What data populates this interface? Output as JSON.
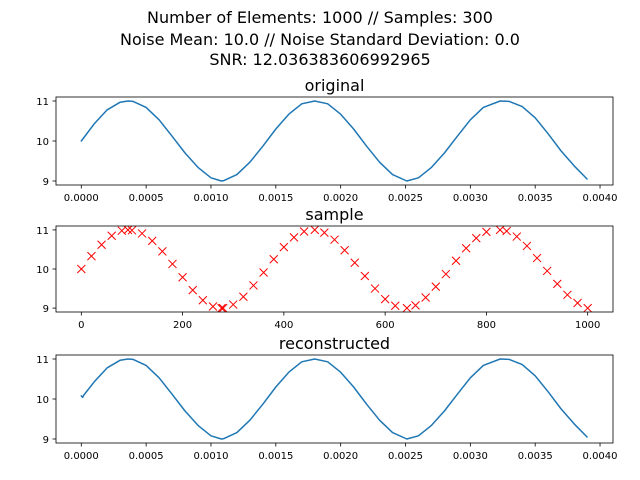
{
  "figure": {
    "title_lines": [
      "Number of Elements: 1000 // Samples: 300",
      "Noise Mean: 10.0 // Noise Standard Deviation: 0.0",
      "SNR: 12.036383606992965"
    ]
  },
  "chart_data": [
    {
      "type": "line",
      "title": "original",
      "xlabel": "",
      "ylabel": "",
      "xlim": [
        -0.000195,
        0.0041
      ],
      "ylim": [
        8.9,
        11.1
      ],
      "xticks": [
        0.0,
        0.0005,
        0.001,
        0.0015,
        0.002,
        0.0025,
        0.003,
        0.0035,
        0.004
      ],
      "xtick_labels": [
        "0.0000",
        "0.0005",
        "0.0010",
        "0.0015",
        "0.0020",
        "0.0025",
        "0.0030",
        "0.0035",
        "0.0040"
      ],
      "yticks": [
        9,
        10,
        11
      ],
      "ytick_labels": [
        "9",
        "10",
        "11"
      ],
      "grid": false,
      "series": [
        {
          "color": "#1f77b4",
          "x": [
            0,
            0.0001,
            0.0002,
            0.0003,
            0.00036,
            0.0004,
            0.0005,
            0.0006,
            0.0007,
            0.0008,
            0.0009,
            0.001,
            0.00108,
            0.0011,
            0.0012,
            0.0013,
            0.0014,
            0.0015,
            0.0016,
            0.0017,
            0.0018,
            0.0019,
            0.002,
            0.0021,
            0.0022,
            0.0023,
            0.0024,
            0.00251,
            0.0026,
            0.0027,
            0.0028,
            0.0029,
            0.003,
            0.0031,
            0.00323,
            0.0033,
            0.0034,
            0.0035,
            0.0036,
            0.0037,
            0.0038,
            0.0039
          ],
          "y": [
            10.0,
            10.43,
            10.78,
            10.97,
            11.0,
            10.99,
            10.84,
            10.53,
            10.12,
            9.7,
            9.34,
            9.08,
            9.0,
            9.01,
            9.16,
            9.47,
            9.87,
            10.3,
            10.67,
            10.93,
            11.0,
            10.93,
            10.67,
            10.3,
            9.87,
            9.47,
            9.16,
            9.0,
            9.08,
            9.34,
            9.7,
            10.12,
            10.53,
            10.84,
            11.0,
            10.99,
            10.86,
            10.58,
            10.18,
            9.75,
            9.38,
            9.05
          ]
        }
      ]
    },
    {
      "type": "scatter",
      "title": "sample",
      "xlabel": "",
      "ylabel": "",
      "xlim": [
        -50,
        1050
      ],
      "ylim": [
        8.9,
        11.1
      ],
      "xticks": [
        0,
        200,
        400,
        600,
        800,
        1000
      ],
      "xtick_labels": [
        "0",
        "200",
        "400",
        "600",
        "800",
        "1000"
      ],
      "yticks": [
        9,
        10,
        11
      ],
      "ytick_labels": [
        "9",
        "10",
        "11"
      ],
      "grid": false,
      "series": [
        {
          "color": "#ff0000",
          "marker": "x",
          "x": [
            0,
            20,
            40,
            60,
            80,
            92,
            100,
            120,
            140,
            160,
            180,
            200,
            220,
            240,
            260,
            277,
            280,
            300,
            320,
            340,
            360,
            380,
            400,
            420,
            440,
            461,
            480,
            500,
            520,
            540,
            560,
            580,
            600,
            620,
            643,
            660,
            680,
            700,
            720,
            740,
            760,
            780,
            800,
            827,
            840,
            860,
            880,
            900,
            920,
            940,
            960,
            980,
            1000
          ],
          "y": [
            10.0,
            10.33,
            10.62,
            10.85,
            10.98,
            11.0,
            10.99,
            10.91,
            10.72,
            10.45,
            10.13,
            9.79,
            9.46,
            9.2,
            9.04,
            9.0,
            9.0,
            9.09,
            9.29,
            9.58,
            9.91,
            10.25,
            10.56,
            10.81,
            10.96,
            11.0,
            10.93,
            10.75,
            10.48,
            10.16,
            9.82,
            9.5,
            9.23,
            9.06,
            9.0,
            9.07,
            9.27,
            9.55,
            9.87,
            10.21,
            10.53,
            10.79,
            10.95,
            11.0,
            10.97,
            10.83,
            10.59,
            10.28,
            9.95,
            9.62,
            9.34,
            9.13,
            9.0
          ]
        }
      ]
    },
    {
      "type": "line",
      "title": "reconstructed",
      "xlabel": "",
      "ylabel": "",
      "xlim": [
        -0.000195,
        0.0041
      ],
      "ylim": [
        8.9,
        11.1
      ],
      "xticks": [
        0.0,
        0.0005,
        0.001,
        0.0015,
        0.002,
        0.0025,
        0.003,
        0.0035,
        0.004
      ],
      "xtick_labels": [
        "0.0000",
        "0.0005",
        "0.0010",
        "0.0015",
        "0.0020",
        "0.0025",
        "0.0030",
        "0.0035",
        "0.0040"
      ],
      "yticks": [
        9,
        10,
        11
      ],
      "ytick_labels": [
        "9",
        "10",
        "11"
      ],
      "grid": false,
      "series": [
        {
          "color": "#1f77b4",
          "x": [
            0,
            1e-05,
            2e-05,
            0.0001,
            0.0002,
            0.0003,
            0.00036,
            0.0004,
            0.0005,
            0.0006,
            0.0007,
            0.0008,
            0.0009,
            0.001,
            0.00108,
            0.0011,
            0.0012,
            0.0013,
            0.0014,
            0.0015,
            0.0016,
            0.0017,
            0.0018,
            0.0019,
            0.002,
            0.0021,
            0.0022,
            0.0023,
            0.0024,
            0.00251,
            0.0026,
            0.0027,
            0.0028,
            0.0029,
            0.003,
            0.0031,
            0.00323,
            0.0033,
            0.0034,
            0.0035,
            0.0036,
            0.0037,
            0.0038,
            0.0039
          ],
          "y": [
            10.08,
            10.04,
            10.1,
            10.43,
            10.78,
            10.97,
            11.0,
            10.99,
            10.84,
            10.53,
            10.12,
            9.7,
            9.34,
            9.08,
            9.0,
            9.01,
            9.16,
            9.47,
            9.87,
            10.3,
            10.67,
            10.93,
            11.0,
            10.93,
            10.67,
            10.3,
            9.87,
            9.47,
            9.16,
            9.0,
            9.08,
            9.34,
            9.7,
            10.12,
            10.53,
            10.84,
            11.0,
            10.99,
            10.86,
            10.58,
            10.18,
            9.75,
            9.38,
            9.05
          ]
        }
      ]
    }
  ]
}
